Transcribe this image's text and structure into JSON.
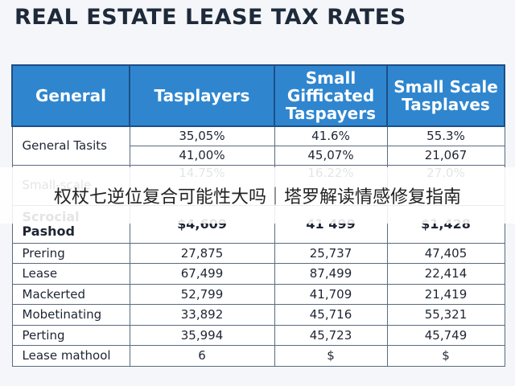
{
  "title": "REAL ESTATE LEASE TAX RATES",
  "table": {
    "header": [
      "General",
      "Tasplayers",
      "Small Gifficated Taspayers",
      "Small Scale Tasplaves"
    ],
    "groups": [
      {
        "label": "General Tasits",
        "rows": [
          [
            "35,05%",
            "41.6%",
            "55.3%"
          ],
          [
            "41,00%",
            "45,07%",
            "21,067"
          ]
        ]
      },
      {
        "label": "Small-scale",
        "rows": [
          [
            "14.75%",
            "16.22%",
            "27.0%"
          ]
        ]
      },
      {
        "label": "Scrocial Pashod",
        "rows": [
          [
            "$4,609",
            "41 499",
            "$1,428"
          ]
        ],
        "bold": true
      },
      {
        "label": "Prering",
        "rows": [
          [
            "27,875",
            "25,737",
            "47,405"
          ]
        ]
      },
      {
        "label": "Lease",
        "rows": [
          [
            "67,499",
            "87,499",
            "22,414"
          ]
        ]
      },
      {
        "label": "Mackerted",
        "rows": [
          [
            "52,799",
            "41,709",
            "21,419"
          ]
        ]
      },
      {
        "label": "Mobetinating",
        "rows": [
          [
            "33,892",
            "45,716",
            "55,321"
          ]
        ]
      },
      {
        "label": "Perting",
        "rows": [
          [
            "35,994",
            "45,723",
            "45,749"
          ]
        ]
      },
      {
        "label": "Lease mathool",
        "rows": [
          [
            "6",
            "$",
            "$"
          ]
        ]
      }
    ]
  },
  "banner": "权杖七逆位复合可能性大吗｜塔罗解读情感修复指南"
}
